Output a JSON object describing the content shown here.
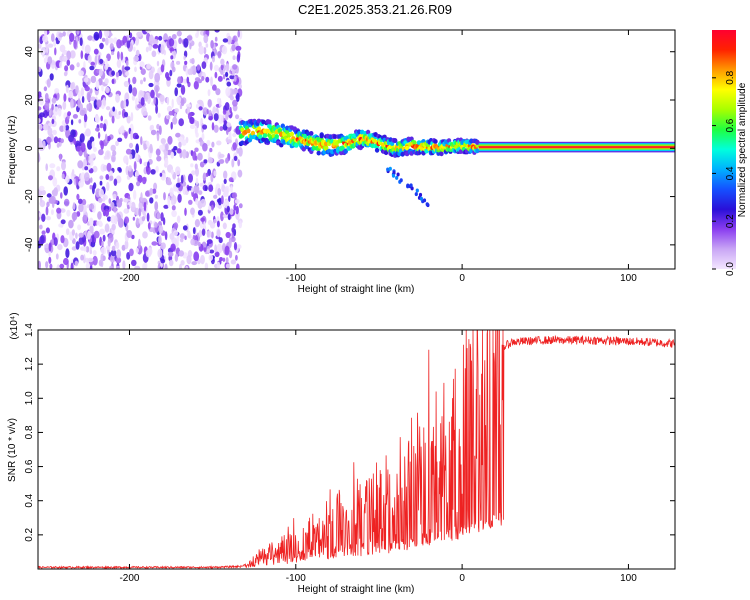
{
  "title": "C2E1.2025.353.21.26.R09",
  "chart_data": [
    {
      "type": "heatmap",
      "xlabel": "Height of straight line (km)",
      "ylabel": "Frequency (Hz)",
      "xlim": [
        -255,
        128
      ],
      "ylim": [
        -50,
        49
      ],
      "xticks": [
        -200,
        -100,
        0,
        100
      ],
      "xtick_labels": [
        "-200",
        "-100",
        "0",
        "100"
      ],
      "yticks": [
        -40,
        -20,
        0,
        20,
        40
      ],
      "ytick_labels": [
        "-40",
        "-20",
        "0",
        "20",
        "40"
      ],
      "colorbar": {
        "label": "Normalized spectral amplitude",
        "range": [
          0,
          1
        ],
        "ticks": [
          0.0,
          0.2,
          0.4,
          0.6,
          0.8
        ],
        "tick_labels": [
          "0.0",
          "0.2",
          "0.4",
          "0.6",
          "0.8"
        ],
        "colors": [
          "#f3e6ff",
          "#c9a6f5",
          "#8a3df0",
          "#2a10d8",
          "#1550ff",
          "#00b0ff",
          "#00ffdd",
          "#20ff40",
          "#a8ff00",
          "#ffff00",
          "#ff9900",
          "#ff2200",
          "#ff0030"
        ]
      },
      "noise_region": {
        "x_range": [
          -255,
          -133
        ],
        "amplitude": 0.15
      },
      "signal_path": {
        "x": [
          -133,
          -120,
          -110,
          -100,
          -90,
          -80,
          -70,
          -60,
          -50,
          -40,
          -30,
          -20,
          -10,
          0,
          10,
          128
        ],
        "freq": [
          6.5,
          7,
          6,
          4,
          2.5,
          1,
          2,
          4,
          2,
          0,
          1,
          0.5,
          0.5,
          1,
          0.5,
          0.5
        ]
      },
      "steady_line": {
        "x_range": [
          10,
          128
        ],
        "freq": 0.5,
        "amplitude": 1.0
      }
    },
    {
      "type": "line",
      "xlabel": "Height of straight line (km)",
      "ylabel": "SNR (10 * v/v)",
      "y_scale_label": "(x10⁴)",
      "xlim": [
        -255,
        128
      ],
      "ylim": [
        0,
        1.4
      ],
      "xticks": [
        -200,
        -100,
        0,
        100
      ],
      "xtick_labels": [
        "-200",
        "-100",
        "0",
        "100"
      ],
      "yticks": [
        0.2,
        0.4,
        0.6,
        0.8,
        1.0,
        1.2,
        1.4
      ],
      "ytick_labels": [
        "0.2",
        "0.4",
        "0.6",
        "0.8",
        "1.0",
        "1.2",
        "1.4"
      ],
      "color": "#ee2222",
      "series": [
        {
          "name": "SNR",
          "x": [
            -255,
            -200,
            -150,
            -133,
            -125,
            -120,
            -110,
            -100,
            -90,
            -80,
            -70,
            -60,
            -50,
            -40,
            -30,
            -20,
            -10,
            0,
            10,
            20,
            25,
            30,
            50,
            80,
            110,
            128
          ],
          "y": [
            0.005,
            0.005,
            0.005,
            0.01,
            0.04,
            0.08,
            0.12,
            0.16,
            0.22,
            0.28,
            0.32,
            0.38,
            0.42,
            0.48,
            0.58,
            0.68,
            0.78,
            0.9,
            1.05,
            1.2,
            1.3,
            1.33,
            1.34,
            1.34,
            1.33,
            1.32
          ]
        }
      ]
    }
  ]
}
